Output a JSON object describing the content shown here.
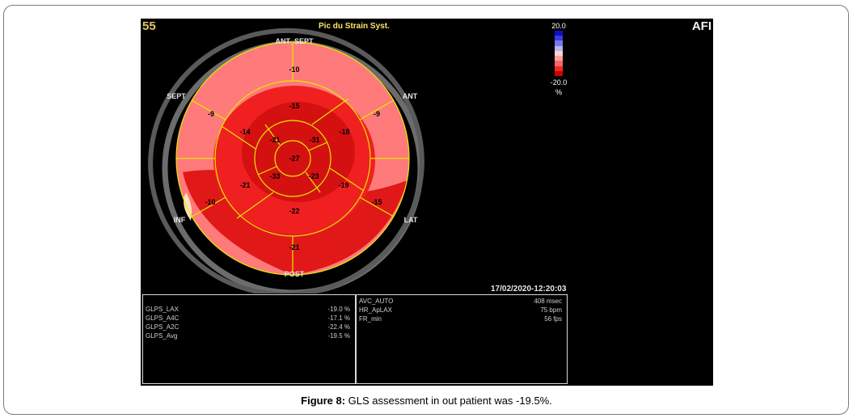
{
  "screen": {
    "frame_number": "55",
    "mode_title": "Pic du Strain Syst.",
    "brand": "AFI",
    "datetime": "17/02/2020-12:20:03"
  },
  "scale": {
    "max": "20.0",
    "min": "-20.0",
    "unit": "%"
  },
  "bullseye": {
    "wall_labels": [
      "ANT_SEPT",
      "ANT",
      "LAT",
      "POST",
      "INF",
      "SEPT"
    ],
    "segments": {
      "basal": [
        "-10",
        "-9",
        "-15",
        "-21",
        "-10",
        "-9"
      ],
      "mid": [
        "-15",
        "-18",
        "-19",
        "-22",
        "-21",
        "-14"
      ],
      "apical": [
        "-21",
        "-31",
        "-23",
        "-33"
      ],
      "apex": "-27"
    }
  },
  "panels": {
    "left": [
      {
        "label": "GLPS_LAX",
        "value": "-19.0 %"
      },
      {
        "label": "GLPS_A4C",
        "value": "-17.1 %"
      },
      {
        "label": "GLPS_A2C",
        "value": "-22.4 %"
      },
      {
        "label": "GLPS_Avg",
        "value": "-19.5 %"
      }
    ],
    "right": [
      {
        "label": "AVC_AUTO",
        "value": "408 msec"
      },
      {
        "label": "HR_ApLAX",
        "value": "75 bpm"
      },
      {
        "label": "FR_min",
        "value": "56 fps"
      }
    ]
  },
  "caption": {
    "prefix": "Figure 8:",
    "text": " GLS assessment in out patient was -19.5%."
  }
}
